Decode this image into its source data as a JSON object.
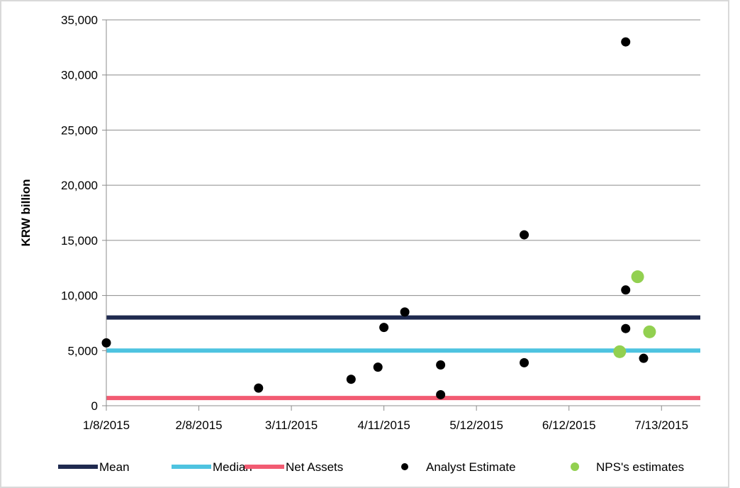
{
  "chart_data": {
    "type": "scatter",
    "title": "",
    "xlabel": "",
    "ylabel": "KRW billion",
    "x_ticks": [
      "1/8/2015",
      "2/8/2015",
      "3/11/2015",
      "4/11/2015",
      "5/12/2015",
      "6/12/2015",
      "7/13/2015"
    ],
    "xlim": [
      "2015-01-08",
      "2015-07-26"
    ],
    "ylim": [
      0,
      35000
    ],
    "y_ticks": [
      0,
      5000,
      10000,
      15000,
      20000,
      25000,
      30000,
      35000
    ],
    "y_tick_labels": [
      "0",
      "5,000",
      "10,000",
      "15,000",
      "20,000",
      "25,000",
      "30,000",
      "35,000"
    ],
    "grid": true,
    "legend_position": "bottom",
    "lines": [
      {
        "name": "Mean",
        "y": 8000,
        "color": "#1f2a4f"
      },
      {
        "name": "Median",
        "y": 5000,
        "color": "#4ec3e0"
      },
      {
        "name": "Net Assets",
        "y": 700,
        "color": "#f25b72"
      }
    ],
    "series": [
      {
        "name": "Analyst Estimate",
        "color": "#000000",
        "points": [
          {
            "x": "2015-01-08",
            "y": 5700
          },
          {
            "x": "2015-02-28",
            "y": 1600
          },
          {
            "x": "2015-03-31",
            "y": 2400
          },
          {
            "x": "2015-04-09",
            "y": 3500
          },
          {
            "x": "2015-04-11",
            "y": 7100
          },
          {
            "x": "2015-04-18",
            "y": 8500
          },
          {
            "x": "2015-04-30",
            "y": 3700
          },
          {
            "x": "2015-04-30",
            "y": 1000
          },
          {
            "x": "2015-05-28",
            "y": 15500
          },
          {
            "x": "2015-05-28",
            "y": 3900
          },
          {
            "x": "2015-07-01",
            "y": 33000
          },
          {
            "x": "2015-07-01",
            "y": 10500
          },
          {
            "x": "2015-07-01",
            "y": 7000
          },
          {
            "x": "2015-07-07",
            "y": 4300
          }
        ]
      },
      {
        "name": "NPS's estimates",
        "color": "#92d050",
        "points": [
          {
            "x": "2015-06-29",
            "y": 4900
          },
          {
            "x": "2015-07-05",
            "y": 11700
          },
          {
            "x": "2015-07-09",
            "y": 6700
          }
        ]
      }
    ],
    "legend": [
      {
        "label": "Mean",
        "kind": "line",
        "color": "#1f2a4f"
      },
      {
        "label": "Median",
        "kind": "line",
        "color": "#4ec3e0"
      },
      {
        "label": "Net Assets",
        "kind": "line",
        "color": "#f25b72"
      },
      {
        "label": "Analyst Estimate",
        "kind": "dot",
        "color": "#000000"
      },
      {
        "label": "NPS's estimates",
        "kind": "dot",
        "color": "#92d050"
      }
    ]
  }
}
